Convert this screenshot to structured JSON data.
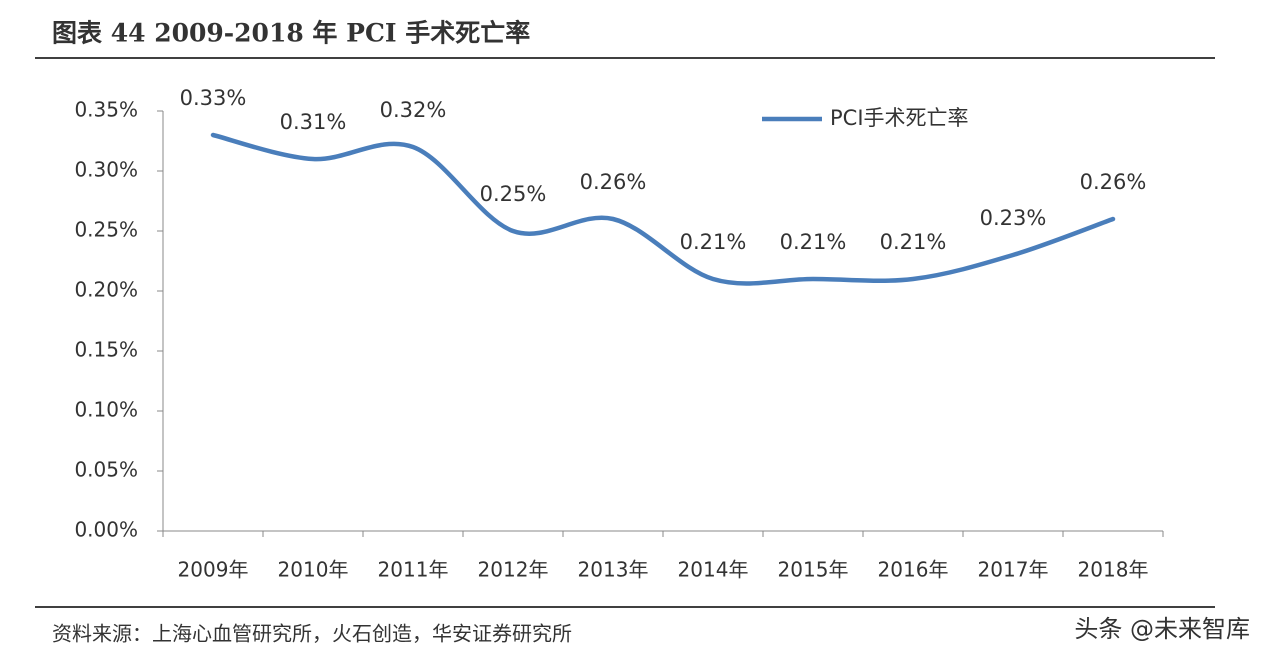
{
  "chart_data": {
    "type": "line",
    "title": "图表 44 2009-2018 年 PCI 手术死亡率",
    "categories": [
      "2009年",
      "2010年",
      "2011年",
      "2012年",
      "2013年",
      "2014年",
      "2015年",
      "2016年",
      "2017年",
      "2018年"
    ],
    "series": [
      {
        "name": "PCI手术死亡率",
        "color": "#4a7ebb",
        "values": [
          0.33,
          0.31,
          0.32,
          0.25,
          0.26,
          0.21,
          0.21,
          0.21,
          0.23,
          0.26
        ],
        "value_labels": [
          "0.33%",
          "0.31%",
          "0.32%",
          "0.25%",
          "0.26%",
          "0.21%",
          "0.21%",
          "0.21%",
          "0.23%",
          "0.26%"
        ]
      }
    ],
    "ylim": [
      0,
      0.35
    ],
    "yticks": [
      {
        "value": 0,
        "label": "0.00%"
      },
      {
        "value": 0.05,
        "label": "0.05%"
      },
      {
        "value": 0.1,
        "label": "0.10%"
      },
      {
        "value": 0.15,
        "label": "0.15%"
      },
      {
        "value": 0.2,
        "label": "0.20%"
      },
      {
        "value": 0.25,
        "label": "0.25%"
      },
      {
        "value": 0.3,
        "label": "0.30%"
      },
      {
        "value": 0.35,
        "label": "0.35%"
      }
    ],
    "smooth": true,
    "legend": "top-right",
    "source": "资料来源：上海心血管研究所，火石创造，华安证券研究所",
    "watermark": "头条 @未来智库"
  }
}
